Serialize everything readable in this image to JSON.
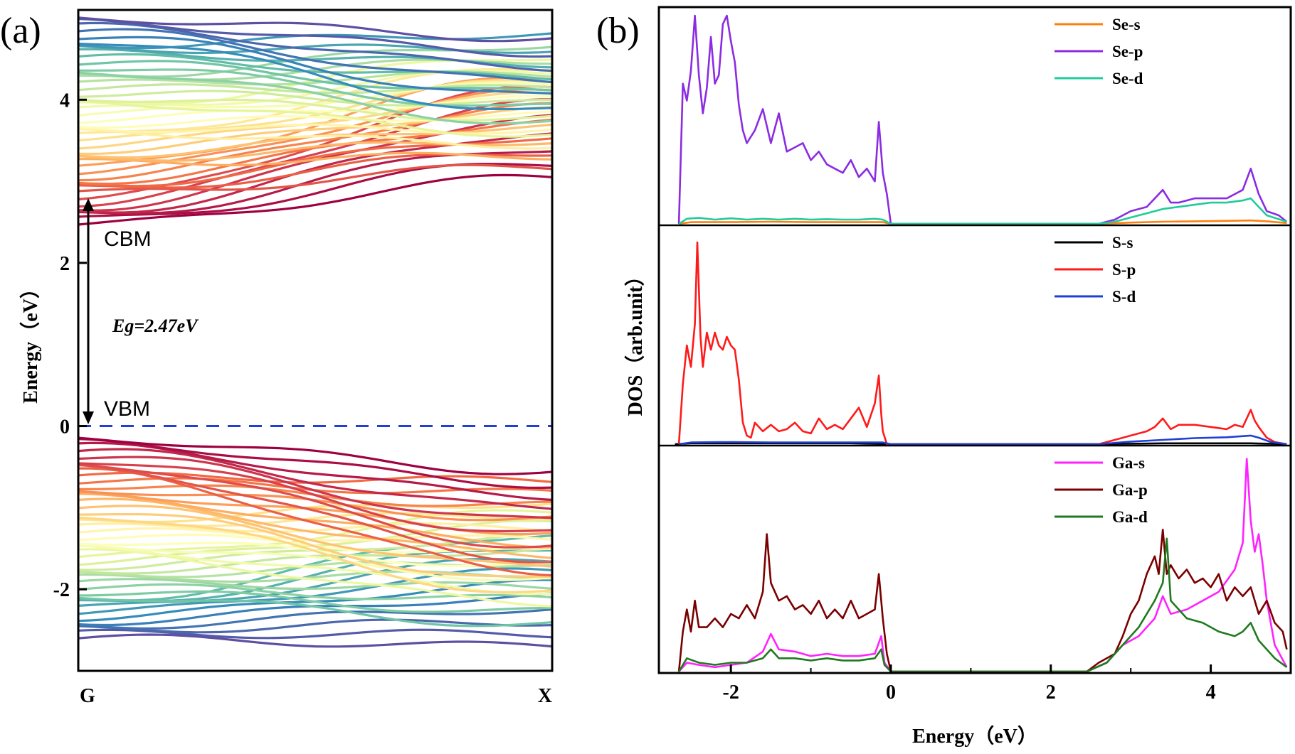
{
  "figure": {
    "label_a": "(a)",
    "label_b": "(b)"
  },
  "chart_data": [
    {
      "type": "line",
      "panel": "(a)",
      "xlabel": "",
      "ylabel": "Energy（eV）",
      "x_ticks": [
        "G",
        "X"
      ],
      "ylim": [
        -3.0,
        5.1
      ],
      "yticks": [
        -2,
        0,
        2,
        4
      ],
      "fermi_level": 0,
      "fermi_line_color": "#1f3fd6",
      "annotations": {
        "cbm": "CBM",
        "vbm": "VBM",
        "gap": "Eg=2.47eV",
        "cbm_energy": 2.47,
        "vbm_energy": 0.0
      },
      "conduction_bands": {
        "count": 48,
        "G_range": [
          2.47,
          5.0
        ],
        "X_range": [
          3.05,
          4.9
        ]
      },
      "valence_bands": {
        "count": 48,
        "G_range": [
          -2.6,
          -0.15
        ],
        "X_range": [
          -2.7,
          -0.45
        ]
      },
      "colormap": "Spectral",
      "grid": false
    },
    {
      "type": "line",
      "panel": "(b)",
      "xlabel": "Energy（eV）",
      "ylabel": "DOS（arb.unit）",
      "xlim": [
        -2.9,
        5.0
      ],
      "xticks": [
        -2,
        0,
        2,
        4
      ],
      "grid": false,
      "subplots": [
        {
          "name": "Se",
          "legend_placement": "top-right",
          "ylim": [
            0,
            5
          ],
          "series": [
            {
              "name": "Se-s",
              "color": "#ff7f0e",
              "x": [
                -2.65,
                -2.5,
                -2.0,
                -1.5,
                -1.0,
                -0.5,
                -0.1,
                0.0,
                2.6,
                3.0,
                3.4,
                3.8,
                4.2,
                4.5,
                4.7,
                4.95
              ],
              "y": [
                0,
                0.04,
                0.04,
                0.05,
                0.04,
                0.04,
                0.04,
                0,
                0,
                0.03,
                0.05,
                0.06,
                0.07,
                0.08,
                0.06,
                0.02
              ]
            },
            {
              "name": "Se-p",
              "color": "#8b2be2",
              "x": [
                -2.65,
                -2.6,
                -2.55,
                -2.5,
                -2.45,
                -2.4,
                -2.35,
                -2.3,
                -2.25,
                -2.2,
                -2.15,
                -2.1,
                -2.05,
                -2.0,
                -1.95,
                -1.9,
                -1.85,
                -1.8,
                -1.7,
                -1.6,
                -1.5,
                -1.4,
                -1.3,
                -1.2,
                -1.1,
                -1.0,
                -0.9,
                -0.8,
                -0.7,
                -0.6,
                -0.5,
                -0.4,
                -0.3,
                -0.2,
                -0.15,
                -0.1,
                -0.05,
                0.0,
                0.05,
                2.6,
                2.8,
                3.0,
                3.2,
                3.4,
                3.5,
                3.6,
                3.8,
                4.0,
                4.2,
                4.4,
                4.5,
                4.6,
                4.7,
                4.85,
                4.95
              ],
              "y": [
                0,
                3.3,
                2.9,
                3.6,
                4.9,
                3.5,
                2.6,
                3.2,
                4.4,
                3.3,
                3.5,
                4.7,
                4.9,
                4.3,
                3.8,
                2.8,
                2.2,
                1.9,
                2.2,
                2.7,
                1.9,
                2.6,
                1.7,
                1.8,
                1.9,
                1.5,
                1.7,
                1.4,
                1.3,
                1.2,
                1.5,
                1.1,
                1.3,
                1.0,
                2.4,
                1.2,
                0.7,
                0,
                0,
                0,
                0.1,
                0.3,
                0.4,
                0.8,
                0.5,
                0.5,
                0.6,
                0.6,
                0.6,
                0.8,
                1.3,
                0.7,
                0.3,
                0.2,
                0.05
              ]
            },
            {
              "name": "Se-d",
              "color": "#1fcc9a",
              "x": [
                -2.65,
                -2.55,
                -2.4,
                -2.2,
                -2.0,
                -1.8,
                -1.6,
                -1.4,
                -1.2,
                -1.0,
                -0.8,
                -0.6,
                -0.4,
                -0.2,
                -0.1,
                0.0,
                2.6,
                2.8,
                3.0,
                3.2,
                3.4,
                3.6,
                3.8,
                4.0,
                4.2,
                4.4,
                4.5,
                4.6,
                4.7,
                4.95
              ],
              "y": [
                0,
                0.12,
                0.14,
                0.1,
                0.13,
                0.1,
                0.12,
                0.1,
                0.12,
                0.1,
                0.11,
                0.1,
                0.1,
                0.12,
                0.1,
                0,
                0,
                0.05,
                0.15,
                0.25,
                0.35,
                0.4,
                0.45,
                0.5,
                0.5,
                0.55,
                0.6,
                0.4,
                0.2,
                0.05
              ]
            }
          ]
        },
        {
          "name": "S",
          "legend_placement": "top-right",
          "ylim": [
            0,
            5
          ],
          "series": [
            {
              "name": "S-s",
              "color": "#000000",
              "x": [
                -2.7,
                -2.5,
                -2.0,
                -1.5,
                -1.0,
                -0.5,
                0.0,
                2.6,
                3.4,
                4.0,
                4.5,
                4.95
              ],
              "y": [
                0,
                0.02,
                0.02,
                0.02,
                0.02,
                0.02,
                0,
                0,
                0.02,
                0.02,
                0.02,
                0
              ]
            },
            {
              "name": "S-p",
              "color": "#ff1a1a",
              "x": [
                -2.65,
                -2.6,
                -2.55,
                -2.5,
                -2.45,
                -2.42,
                -2.38,
                -2.35,
                -2.3,
                -2.25,
                -2.2,
                -2.15,
                -2.1,
                -2.05,
                -2.0,
                -1.95,
                -1.9,
                -1.85,
                -1.8,
                -1.75,
                -1.7,
                -1.6,
                -1.5,
                -1.4,
                -1.3,
                -1.2,
                -1.1,
                -1.0,
                -0.9,
                -0.8,
                -0.7,
                -0.6,
                -0.5,
                -0.4,
                -0.3,
                -0.2,
                -0.15,
                -0.12,
                -0.1,
                -0.05,
                0.0,
                2.6,
                2.8,
                3.0,
                3.2,
                3.3,
                3.4,
                3.5,
                3.6,
                3.8,
                4.0,
                4.2,
                4.3,
                4.4,
                4.5,
                4.55,
                4.6,
                4.7,
                4.8,
                4.95
              ],
              "y": [
                0,
                1.4,
                2.3,
                1.8,
                2.8,
                4.7,
                2.5,
                1.8,
                2.6,
                2.2,
                2.6,
                2.3,
                2.2,
                2.5,
                2.3,
                2.2,
                1.5,
                0.5,
                0.2,
                0.15,
                0.5,
                0.3,
                0.45,
                0.3,
                0.35,
                0.5,
                0.3,
                0.25,
                0.6,
                0.35,
                0.45,
                0.35,
                0.6,
                0.85,
                0.4,
                0.95,
                1.6,
                0.7,
                0.3,
                0,
                0,
                0,
                0.1,
                0.2,
                0.3,
                0.4,
                0.6,
                0.35,
                0.45,
                0.45,
                0.4,
                0.35,
                0.45,
                0.4,
                0.8,
                0.55,
                0.4,
                0.15,
                0.05,
                0
              ]
            },
            {
              "name": "S-d",
              "color": "#1f3fd6",
              "x": [
                -2.65,
                -2.5,
                -2.0,
                -1.5,
                -1.0,
                -0.5,
                -0.1,
                0.0,
                2.6,
                3.0,
                3.4,
                3.8,
                4.2,
                4.5,
                4.6,
                4.75,
                4.95
              ],
              "y": [
                0,
                0.04,
                0.05,
                0.04,
                0.04,
                0.04,
                0.04,
                0,
                0,
                0.06,
                0.1,
                0.14,
                0.16,
                0.2,
                0.15,
                0.05,
                0
              ]
            }
          ]
        },
        {
          "name": "Ga",
          "legend_placement": "top-right",
          "ylim": [
            0,
            5
          ],
          "series": [
            {
              "name": "Ga-s",
              "color": "#ff22ff",
              "x": [
                -2.65,
                -2.55,
                -2.4,
                -2.2,
                -2.0,
                -1.8,
                -1.6,
                -1.5,
                -1.4,
                -1.2,
                -1.0,
                -0.8,
                -0.6,
                -0.4,
                -0.2,
                -0.12,
                -0.08,
                0.0,
                2.45,
                2.7,
                2.9,
                3.1,
                3.3,
                3.4,
                3.5,
                3.7,
                3.9,
                4.1,
                4.3,
                4.4,
                4.45,
                4.5,
                4.55,
                4.6,
                4.65,
                4.7,
                4.8,
                4.95
              ],
              "y": [
                0,
                0.2,
                0.15,
                0.1,
                0.15,
                0.2,
                0.45,
                0.85,
                0.5,
                0.45,
                0.35,
                0.4,
                0.35,
                0.35,
                0.4,
                0.8,
                0.2,
                0,
                0,
                0.2,
                0.6,
                0.8,
                1.2,
                1.7,
                1.3,
                1.4,
                1.6,
                1.8,
                2.3,
                2.9,
                4.8,
                3.4,
                2.7,
                3.1,
                2.4,
                1.6,
                0.6,
                0.1
              ]
            },
            {
              "name": "Ga-p",
              "color": "#7a0000",
              "x": [
                -2.65,
                -2.6,
                -2.55,
                -2.5,
                -2.45,
                -2.4,
                -2.3,
                -2.2,
                -2.1,
                -2.0,
                -1.9,
                -1.8,
                -1.7,
                -1.6,
                -1.55,
                -1.5,
                -1.45,
                -1.4,
                -1.3,
                -1.2,
                -1.1,
                -1.0,
                -0.9,
                -0.8,
                -0.7,
                -0.6,
                -0.5,
                -0.4,
                -0.3,
                -0.2,
                -0.15,
                -0.1,
                -0.05,
                0.0,
                2.45,
                2.6,
                2.8,
                2.9,
                3.0,
                3.1,
                3.2,
                3.3,
                3.35,
                3.4,
                3.45,
                3.5,
                3.6,
                3.7,
                3.8,
                3.9,
                4.0,
                4.1,
                4.2,
                4.3,
                4.4,
                4.5,
                4.6,
                4.7,
                4.8,
                4.9,
                4.95
              ],
              "y": [
                0,
                0.9,
                1.4,
                0.9,
                1.6,
                1.0,
                1.0,
                1.2,
                1.0,
                1.3,
                1.2,
                1.5,
                1.2,
                1.8,
                3.1,
                2.0,
                1.8,
                1.6,
                1.7,
                1.4,
                1.5,
                1.3,
                1.6,
                1.2,
                1.4,
                1.2,
                1.6,
                1.2,
                1.3,
                1.4,
                2.2,
                1.2,
                0.4,
                0,
                0,
                0.2,
                0.4,
                0.8,
                1.3,
                1.6,
                2.2,
                2.6,
                2.2,
                3.2,
                2.2,
                2.4,
                2.1,
                2.3,
                2.0,
                2.1,
                1.9,
                2.2,
                1.6,
                1.9,
                1.7,
                1.9,
                1.3,
                1.6,
                1.1,
                0.9,
                0.5
              ]
            },
            {
              "name": "Ga-d",
              "color": "#1f7a1f",
              "x": [
                -2.65,
                -2.55,
                -2.4,
                -2.2,
                -2.0,
                -1.8,
                -1.6,
                -1.5,
                -1.4,
                -1.2,
                -1.0,
                -0.8,
                -0.6,
                -0.4,
                -0.2,
                -0.12,
                -0.08,
                0.0,
                2.45,
                2.7,
                2.9,
                3.1,
                3.3,
                3.4,
                3.45,
                3.5,
                3.7,
                3.9,
                4.1,
                4.3,
                4.4,
                4.5,
                4.6,
                4.7,
                4.8,
                4.95
              ],
              "y": [
                0,
                0.3,
                0.2,
                0.15,
                0.2,
                0.2,
                0.3,
                0.5,
                0.3,
                0.3,
                0.25,
                0.3,
                0.25,
                0.25,
                0.3,
                0.5,
                0.15,
                0,
                0,
                0.2,
                0.6,
                1.0,
                1.6,
                2.0,
                3.0,
                1.6,
                1.2,
                1.1,
                0.9,
                0.8,
                0.9,
                1.1,
                0.7,
                0.5,
                0.3,
                0.1
              ]
            }
          ]
        }
      ]
    }
  ]
}
